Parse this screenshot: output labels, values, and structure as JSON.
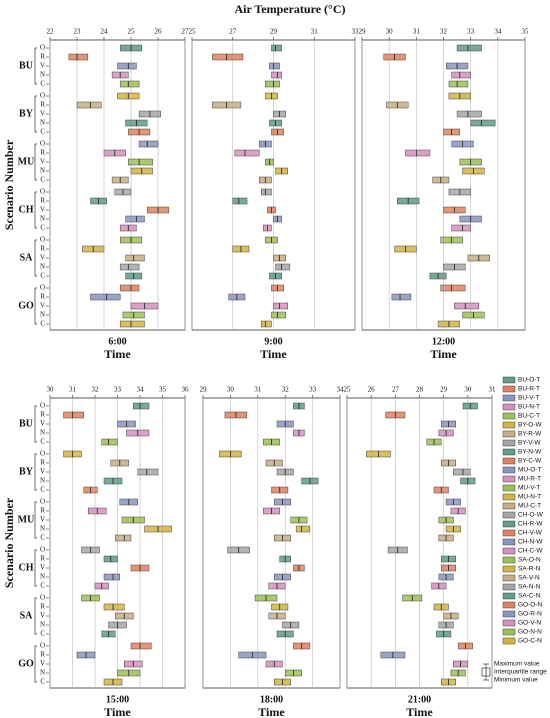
{
  "title": "Air Temperature (°C)",
  "ylabel": "Scenario Number",
  "groups": [
    "BU",
    "BY",
    "MU",
    "CH",
    "SA",
    "GO"
  ],
  "rows": [
    "O",
    "R",
    "V",
    "N",
    "C"
  ],
  "legend": [
    {
      "name": "BU-O-T",
      "color": "#5e9e84"
    },
    {
      "name": "BU-R-T",
      "color": "#e0825f"
    },
    {
      "name": "BU-V-T",
      "color": "#8a94c0"
    },
    {
      "name": "BU-N-T",
      "color": "#d68fc0"
    },
    {
      "name": "BU-C-T",
      "color": "#9cc054"
    },
    {
      "name": "BY-O-W",
      "color": "#d4b440"
    },
    {
      "name": "BY-R-W",
      "color": "#c9ad82"
    },
    {
      "name": "BY-V-W",
      "color": "#a6a6a6"
    },
    {
      "name": "BY-N-W",
      "color": "#5e9e84"
    },
    {
      "name": "BY-C-W",
      "color": "#e0825f"
    },
    {
      "name": "MU-O-T",
      "color": "#8a94c0"
    },
    {
      "name": "MU-R-T",
      "color": "#d68fc0"
    },
    {
      "name": "MU-V-T",
      "color": "#9cc054"
    },
    {
      "name": "MU-N-T",
      "color": "#d4b440"
    },
    {
      "name": "MU-C-T",
      "color": "#c9ad82"
    },
    {
      "name": "CH-O-W",
      "color": "#a6a6a6"
    },
    {
      "name": "CH-R-W",
      "color": "#5e9e84"
    },
    {
      "name": "CH-V-W",
      "color": "#e0825f"
    },
    {
      "name": "CH-N-W",
      "color": "#8a94c0"
    },
    {
      "name": "CH-C-W",
      "color": "#d68fc0"
    },
    {
      "name": "SA-O-N",
      "color": "#9cc054"
    },
    {
      "name": "SA-R-N",
      "color": "#d4b440"
    },
    {
      "name": "SA-V-N",
      "color": "#c9ad82"
    },
    {
      "name": "SA-N-N",
      "color": "#a6a6a6"
    },
    {
      "name": "SA-C-N",
      "color": "#5e9e84"
    },
    {
      "name": "GO-O-N",
      "color": "#e0825f"
    },
    {
      "name": "GO-R-N",
      "color": "#8a94c0"
    },
    {
      "name": "GO-V-N",
      "color": "#d68fc0"
    },
    {
      "name": "GO-N-N",
      "color": "#9cc054"
    },
    {
      "name": "GO-C-N",
      "color": "#d4b440"
    }
  ],
  "box_key": [
    "Maximum value",
    "Interquartile range",
    "Minimum value"
  ],
  "chart_data": [
    {
      "type": "box",
      "time": "6:00",
      "xlabel": "Time",
      "xlim": [
        22,
        27
      ],
      "xticks": [
        22,
        23,
        24,
        25,
        26,
        27
      ],
      "grid": true,
      "boxes": [
        [
          24.6,
          25.0,
          25.4
        ],
        [
          22.7,
          23.0,
          23.4
        ],
        [
          24.5,
          24.9,
          25.2
        ],
        [
          24.3,
          24.6,
          24.9
        ],
        [
          24.6,
          24.9,
          25.3
        ],
        [
          24.5,
          24.9,
          25.3
        ],
        [
          23.0,
          23.5,
          23.9
        ],
        [
          25.3,
          25.7,
          26.1
        ],
        [
          24.8,
          25.2,
          25.6
        ],
        [
          24.9,
          25.3,
          25.7
        ],
        [
          25.3,
          25.6,
          26.0
        ],
        [
          24.0,
          24.4,
          24.8
        ],
        [
          24.9,
          25.3,
          25.8
        ],
        [
          25.0,
          25.4,
          25.8
        ],
        [
          24.3,
          24.6,
          24.9
        ],
        [
          24.4,
          24.7,
          25.0
        ],
        [
          23.5,
          23.8,
          24.1
        ],
        [
          25.6,
          26.0,
          26.4
        ],
        [
          24.8,
          25.2,
          25.5
        ],
        [
          24.6,
          24.9,
          25.2
        ],
        [
          24.6,
          25.0,
          25.4
        ],
        [
          23.2,
          23.6,
          24.0
        ],
        [
          24.8,
          25.1,
          25.5
        ],
        [
          24.6,
          24.9,
          25.3
        ],
        [
          24.8,
          25.1,
          25.4
        ],
        [
          24.6,
          25.0,
          25.3
        ],
        [
          23.5,
          24.1,
          24.6
        ],
        [
          25.0,
          25.5,
          26.0
        ],
        [
          24.7,
          25.1,
          25.5
        ],
        [
          24.6,
          25.0,
          25.5
        ]
      ]
    },
    {
      "type": "box",
      "time": "9:00",
      "xlabel": "Time",
      "xlim": [
        25,
        33
      ],
      "xticks": [
        25,
        27,
        29,
        31,
        33
      ],
      "grid": true,
      "boxes": [
        [
          28.9,
          29.1,
          29.4
        ],
        [
          26.0,
          26.7,
          27.5
        ],
        [
          28.8,
          29.0,
          29.3
        ],
        [
          28.9,
          29.2,
          29.4
        ],
        [
          28.6,
          29.0,
          29.3
        ],
        [
          28.6,
          28.9,
          29.2
        ],
        [
          26.0,
          26.7,
          27.4
        ],
        [
          29.0,
          29.3,
          29.6
        ],
        [
          28.8,
          29.1,
          29.4
        ],
        [
          28.9,
          29.2,
          29.5
        ],
        [
          28.3,
          28.6,
          28.9
        ],
        [
          27.1,
          27.6,
          28.3
        ],
        [
          28.6,
          28.8,
          29.0
        ],
        [
          29.1,
          29.4,
          29.7
        ],
        [
          28.3,
          28.6,
          28.9
        ],
        [
          28.4,
          28.6,
          28.9
        ],
        [
          27.0,
          27.3,
          27.7
        ],
        [
          28.7,
          28.9,
          29.1
        ],
        [
          29.0,
          29.2,
          29.4
        ],
        [
          28.5,
          28.7,
          28.9
        ],
        [
          28.6,
          28.9,
          29.2
        ],
        [
          27.0,
          27.4,
          27.8
        ],
        [
          29.0,
          29.3,
          29.6
        ],
        [
          29.1,
          29.4,
          29.8
        ],
        [
          28.8,
          29.1,
          29.4
        ],
        [
          28.9,
          29.2,
          29.5
        ],
        [
          26.8,
          27.2,
          27.6
        ],
        [
          29.0,
          29.3,
          29.7
        ],
        [
          28.9,
          29.2,
          29.6
        ],
        [
          28.4,
          28.6,
          28.9
        ]
      ]
    },
    {
      "type": "box",
      "time": "12:00",
      "xlabel": "Time",
      "xlim": [
        29,
        35
      ],
      "xticks": [
        29,
        30,
        31,
        32,
        33,
        34,
        35
      ],
      "grid": true,
      "boxes": [
        [
          32.5,
          32.9,
          33.4
        ],
        [
          29.8,
          30.2,
          30.6
        ],
        [
          32.1,
          32.5,
          32.9
        ],
        [
          32.3,
          32.6,
          33.0
        ],
        [
          32.2,
          32.5,
          32.9
        ],
        [
          32.2,
          32.6,
          33.0
        ],
        [
          29.9,
          30.3,
          30.7
        ],
        [
          32.5,
          32.9,
          33.4
        ],
        [
          33.0,
          33.4,
          33.9
        ],
        [
          32.0,
          32.3,
          32.6
        ],
        [
          32.3,
          32.7,
          33.1
        ],
        [
          30.6,
          31.0,
          31.5
        ],
        [
          32.6,
          33.0,
          33.4
        ],
        [
          32.7,
          33.1,
          33.5
        ],
        [
          31.6,
          31.9,
          32.2
        ],
        [
          32.2,
          32.6,
          33.0
        ],
        [
          30.3,
          30.7,
          31.1
        ],
        [
          32.0,
          32.4,
          32.8
        ],
        [
          32.6,
          33.0,
          33.4
        ],
        [
          32.3,
          32.7,
          33.0
        ],
        [
          31.9,
          32.3,
          32.7
        ],
        [
          30.2,
          30.6,
          31.0
        ],
        [
          32.9,
          33.3,
          33.7
        ],
        [
          32.0,
          32.4,
          32.8
        ],
        [
          31.5,
          31.8,
          32.1
        ],
        [
          31.9,
          32.3,
          32.8
        ],
        [
          30.1,
          30.4,
          30.8
        ],
        [
          32.4,
          32.8,
          33.3
        ],
        [
          32.7,
          33.1,
          33.5
        ],
        [
          31.8,
          32.2,
          32.6
        ]
      ]
    },
    {
      "type": "box",
      "time": "15:00",
      "xlabel": "Time",
      "xlim": [
        30,
        36
      ],
      "xticks": [
        30,
        31,
        32,
        33,
        34,
        35,
        36
      ],
      "grid": true,
      "boxes": [
        [
          33.7,
          34.0,
          34.4
        ],
        [
          30.6,
          31.0,
          31.5
        ],
        [
          33.0,
          33.4,
          33.8
        ],
        [
          33.4,
          33.9,
          34.4
        ],
        [
          32.3,
          32.6,
          33.0
        ],
        [
          30.6,
          31.0,
          31.4
        ],
        [
          32.7,
          33.1,
          33.5
        ],
        [
          33.9,
          34.3,
          34.8
        ],
        [
          32.4,
          32.8,
          33.2
        ],
        [
          31.5,
          31.8,
          32.1
        ],
        [
          33.1,
          33.5,
          33.9
        ],
        [
          31.7,
          32.1,
          32.5
        ],
        [
          33.2,
          33.7,
          34.2
        ],
        [
          34.2,
          34.8,
          35.4
        ],
        [
          32.9,
          33.3,
          33.6
        ],
        [
          31.4,
          31.8,
          32.2
        ],
        [
          32.4,
          32.7,
          33.0
        ],
        [
          33.6,
          34.0,
          34.4
        ],
        [
          32.4,
          32.8,
          33.1
        ],
        [
          32.0,
          32.3,
          32.6
        ],
        [
          31.4,
          31.8,
          32.2
        ],
        [
          32.4,
          32.8,
          33.3
        ],
        [
          32.9,
          33.3,
          33.7
        ],
        [
          32.6,
          33.0,
          33.4
        ],
        [
          32.3,
          32.6,
          32.9
        ],
        [
          33.6,
          34.0,
          34.5
        ],
        [
          31.2,
          31.6,
          32.0
        ],
        [
          33.3,
          33.7,
          34.1
        ],
        [
          33.0,
          33.5,
          34.0
        ],
        [
          32.4,
          32.8,
          33.2
        ]
      ]
    },
    {
      "type": "box",
      "time": "18:00",
      "xlabel": "Time",
      "xlim": [
        29,
        34
      ],
      "xticks": [
        29,
        30,
        31,
        32,
        33,
        34
      ],
      "grid": true,
      "boxes": [
        [
          32.3,
          32.5,
          32.7
        ],
        [
          29.8,
          30.2,
          30.6
        ],
        [
          31.7,
          32.0,
          32.3
        ],
        [
          32.3,
          32.5,
          32.7
        ],
        [
          31.2,
          31.5,
          31.8
        ],
        [
          29.6,
          30.0,
          30.4
        ],
        [
          31.3,
          31.6,
          31.9
        ],
        [
          31.7,
          32.0,
          32.3
        ],
        [
          32.6,
          32.9,
          33.2
        ],
        [
          31.5,
          31.8,
          32.1
        ],
        [
          31.6,
          31.9,
          32.2
        ],
        [
          31.2,
          31.5,
          31.8
        ],
        [
          32.2,
          32.5,
          32.8
        ],
        [
          32.4,
          32.6,
          32.9
        ],
        [
          31.6,
          31.9,
          32.2
        ],
        [
          29.9,
          30.3,
          30.7
        ],
        [
          31.8,
          32.0,
          32.2
        ],
        [
          32.3,
          32.5,
          32.7
        ],
        [
          31.6,
          31.9,
          32.2
        ],
        [
          31.4,
          31.7,
          32.0
        ],
        [
          30.9,
          31.3,
          31.7
        ],
        [
          31.5,
          31.8,
          32.1
        ],
        [
          31.4,
          31.7,
          32.0
        ],
        [
          31.9,
          32.2,
          32.5
        ],
        [
          31.7,
          32.0,
          32.3
        ],
        [
          32.3,
          32.6,
          32.9
        ],
        [
          30.3,
          30.8,
          31.3
        ],
        [
          31.3,
          31.6,
          31.9
        ],
        [
          32.0,
          32.3,
          32.6
        ],
        [
          31.6,
          31.9,
          32.2
        ]
      ]
    },
    {
      "type": "box",
      "time": "21:00",
      "xlabel": "Time",
      "xlim": [
        25,
        31
      ],
      "xticks": [
        25,
        26,
        27,
        28,
        29,
        30,
        31
      ],
      "grid": true,
      "boxes": [
        [
          29.8,
          30.1,
          30.4
        ],
        [
          26.6,
          27.0,
          27.4
        ],
        [
          28.9,
          29.2,
          29.5
        ],
        [
          28.8,
          29.1,
          29.4
        ],
        [
          28.3,
          28.6,
          28.9
        ],
        [
          25.8,
          26.3,
          26.8
        ],
        [
          28.9,
          29.2,
          29.5
        ],
        [
          29.4,
          29.8,
          30.1
        ],
        [
          29.7,
          30.0,
          30.3
        ],
        [
          28.6,
          28.9,
          29.2
        ],
        [
          29.1,
          29.4,
          29.7
        ],
        [
          29.3,
          29.6,
          29.9
        ],
        [
          28.8,
          29.1,
          29.4
        ],
        [
          29.1,
          29.4,
          29.7
        ],
        [
          28.8,
          29.1,
          29.4
        ],
        [
          26.7,
          27.1,
          27.5
        ],
        [
          28.9,
          29.2,
          29.5
        ],
        [
          28.9,
          29.2,
          29.5
        ],
        [
          28.8,
          29.1,
          29.4
        ],
        [
          28.5,
          28.8,
          29.1
        ],
        [
          27.3,
          27.7,
          28.1
        ],
        [
          28.6,
          28.9,
          29.2
        ],
        [
          29.0,
          29.3,
          29.6
        ],
        [
          28.8,
          29.1,
          29.4
        ],
        [
          28.7,
          29.0,
          29.3
        ],
        [
          29.6,
          29.9,
          30.2
        ],
        [
          26.4,
          26.9,
          27.4
        ],
        [
          29.4,
          29.7,
          30.0
        ],
        [
          29.3,
          29.6,
          29.9
        ],
        [
          28.9,
          29.2,
          29.5
        ]
      ]
    }
  ]
}
